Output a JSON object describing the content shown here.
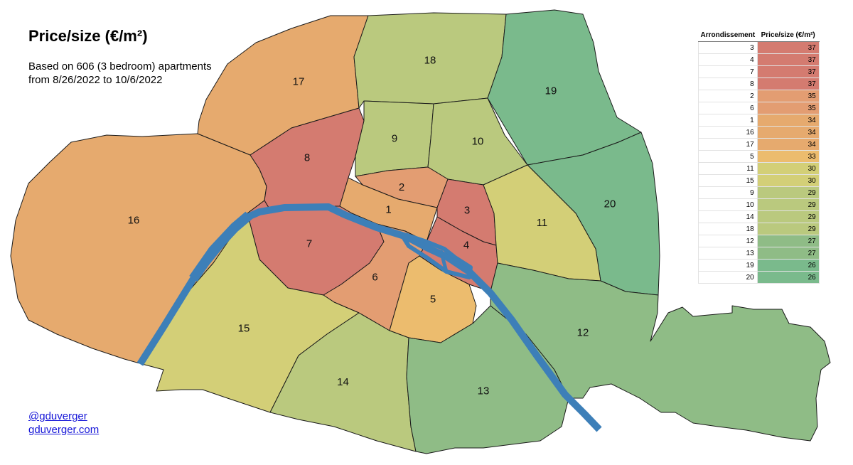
{
  "title": "Price/size (€/m²)",
  "subtitle_line1": "Based on 606 (3 bedroom) apartments",
  "subtitle_line2": "from 8/26/2022 to 10/6/2022",
  "links": [
    "@gduverger",
    "gduverger.com"
  ],
  "river_color": "#3d7fb8",
  "color_scale": {
    "37": "#d47b70",
    "35": "#e39d72",
    "34": "#e6aa6e",
    "33": "#ecbc6e",
    "30": "#d3cf77",
    "29": "#bac97e",
    "27": "#8fbc86",
    "26": "#7aba8c"
  },
  "legend": {
    "header_arr": "Arrondissement",
    "header_price": "Price/size (€/m²)",
    "rows": [
      {
        "arr": "3",
        "price": 37
      },
      {
        "arr": "4",
        "price": 37
      },
      {
        "arr": "7",
        "price": 37
      },
      {
        "arr": "8",
        "price": 37
      },
      {
        "arr": "2",
        "price": 35
      },
      {
        "arr": "6",
        "price": 35
      },
      {
        "arr": "1",
        "price": 34
      },
      {
        "arr": "16",
        "price": 34
      },
      {
        "arr": "17",
        "price": 34
      },
      {
        "arr": "5",
        "price": 33
      },
      {
        "arr": "11",
        "price": 30
      },
      {
        "arr": "15",
        "price": 30
      },
      {
        "arr": "9",
        "price": 29
      },
      {
        "arr": "10",
        "price": 29
      },
      {
        "arr": "14",
        "price": 29
      },
      {
        "arr": "18",
        "price": 29
      },
      {
        "arr": "12",
        "price": 27
      },
      {
        "arr": "13",
        "price": 27
      },
      {
        "arr": "19",
        "price": 26
      },
      {
        "arr": "20",
        "price": 26
      }
    ]
  }
}
